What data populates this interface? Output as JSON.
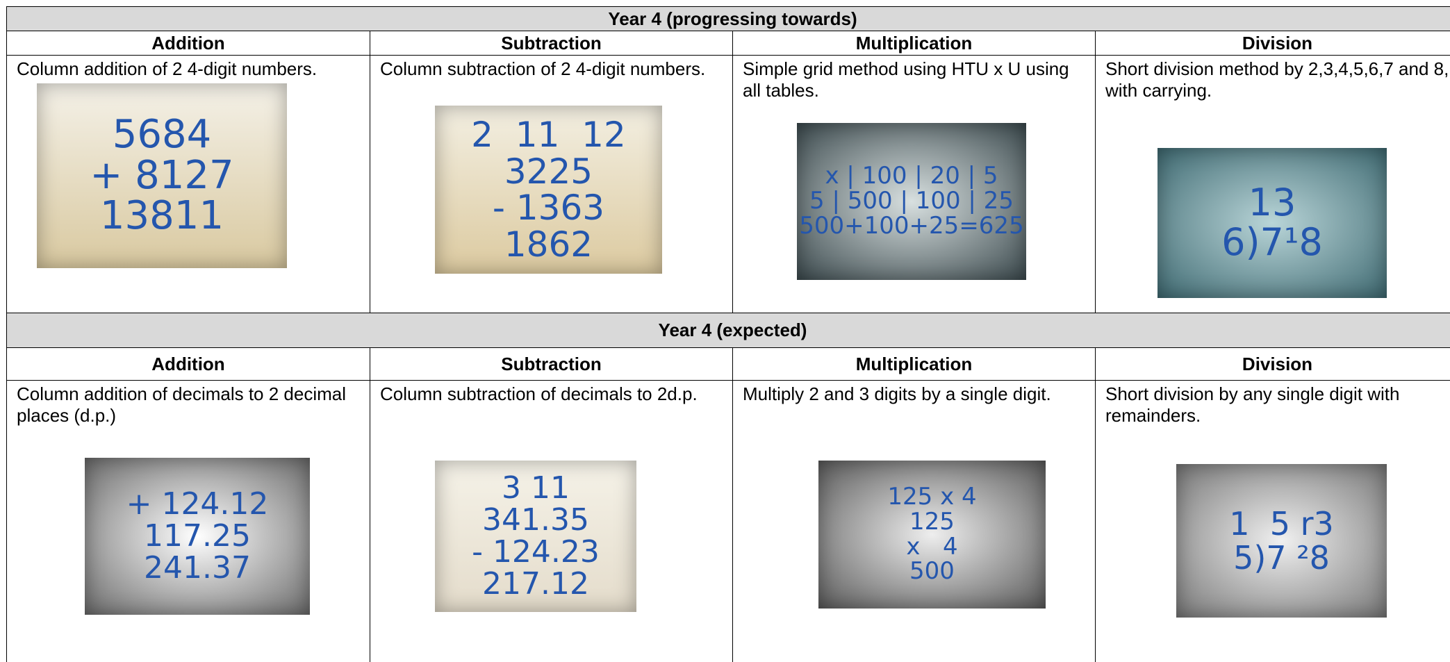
{
  "sections": [
    {
      "title": "Year 4 (progressing towards)",
      "columns": [
        {
          "heading": "Addition",
          "description": "Column addition of 2 4-digit numbers.",
          "board": [
            "5684",
            "+ 8127",
            "13811"
          ]
        },
        {
          "heading": "Subtraction",
          "description": "Column subtraction of 2 4-digit numbers.",
          "board": [
            "2  11  12",
            "3225",
            "- 1363",
            "1862"
          ]
        },
        {
          "heading": "Multiplication",
          "description": "Simple grid method using HTU x U using all tables.",
          "board": [
            "x | 100 | 20 | 5",
            "5 | 500 | 100 | 25",
            "500+100+25=625"
          ]
        },
        {
          "heading": "Division",
          "description": "Short division method by 2,3,4,5,6,7 and 8, with carrying.",
          "board": [
            "13",
            "6)7¹8"
          ]
        }
      ]
    },
    {
      "title": "Year 4 (expected)",
      "columns": [
        {
          "heading": "Addition",
          "description": "Column addition of decimals to 2 decimal places (d.p.)",
          "board": [
            "+ 124.12",
            "117.25",
            "241.37"
          ]
        },
        {
          "heading": "Subtraction",
          "description": "Column subtraction of decimals to 2d.p.",
          "board": [
            "3 11",
            "341.35",
            "- 124.23",
            "217.12"
          ]
        },
        {
          "heading": "Multiplication",
          "description": "Multiply 2 and 3 digits by a single digit.",
          "board": [
            "125 x 4",
            "125",
            "x   4",
            "500"
          ]
        },
        {
          "heading": "Division",
          "description": "Short division by any single digit with remainders.",
          "board": [
            "1  5 r3",
            "5)7 ²8"
          ]
        }
      ]
    }
  ]
}
